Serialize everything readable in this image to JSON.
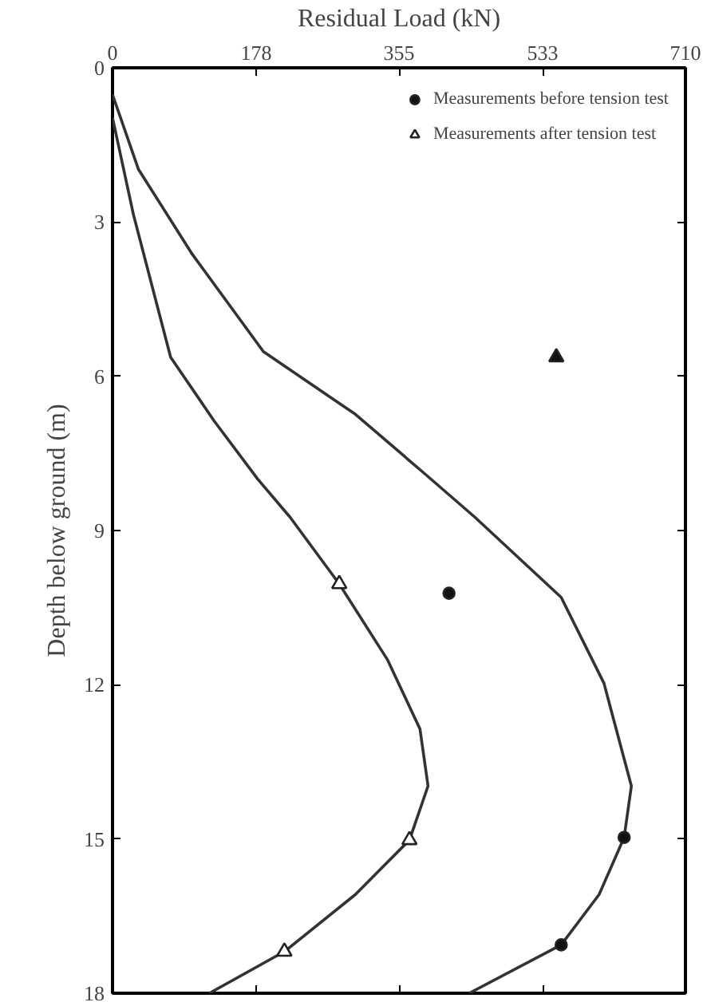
{
  "chart_data": {
    "type": "line",
    "xlabel": "Residual Load (kN)",
    "ylabel": "Depth below ground (m)",
    "xlim": [
      0,
      710
    ],
    "xticks": [
      0,
      178,
      355,
      533,
      710
    ],
    "ylim": [
      18,
      0
    ],
    "yticks": [
      0,
      3,
      6,
      9,
      12,
      15,
      18
    ],
    "grid": false,
    "legend": "top right",
    "series": [
      {
        "color": "#333333",
        "x": [
          0,
          32,
          99,
          187,
          301,
          388,
          449,
          556,
          609,
          643,
          634,
          603,
          556,
          442
        ],
        "values": [
          0.52,
          1.97,
          3.63,
          5.52,
          6.74,
          7.91,
          8.74,
          10.3,
          11.97,
          13.97,
          14.97,
          16.08,
          17.06,
          18
        ]
      },
      {
        "color": "#333333",
        "x": [
          0,
          26,
          72,
          126,
          180,
          220,
          281,
          341,
          381,
          391,
          368,
          301,
          213,
          120
        ],
        "values": [
          0.97,
          2.86,
          5.63,
          6.87,
          8.0,
          8.74,
          10.04,
          11.52,
          12.86,
          13.97,
          15.02,
          16.08,
          17.19,
          18
        ]
      },
      {
        "type": "scatter",
        "marker": "circle",
        "name": "Measurements before tension test",
        "color": "#111111",
        "x": [
          417,
          634,
          556
        ],
        "values": [
          10.22,
          14.97,
          17.06
        ]
      },
      {
        "type": "scatter",
        "marker": "triangle",
        "name": "Measurements after tension test",
        "color": "#ffffff",
        "x": [
          281,
          368,
          213
        ],
        "values": [
          10.04,
          15.02,
          17.19
        ]
      },
      {
        "type": "scatter",
        "marker": "triangle",
        "color": "#111111",
        "x": [
          550
        ],
        "values": [
          5.63
        ]
      }
    ]
  }
}
